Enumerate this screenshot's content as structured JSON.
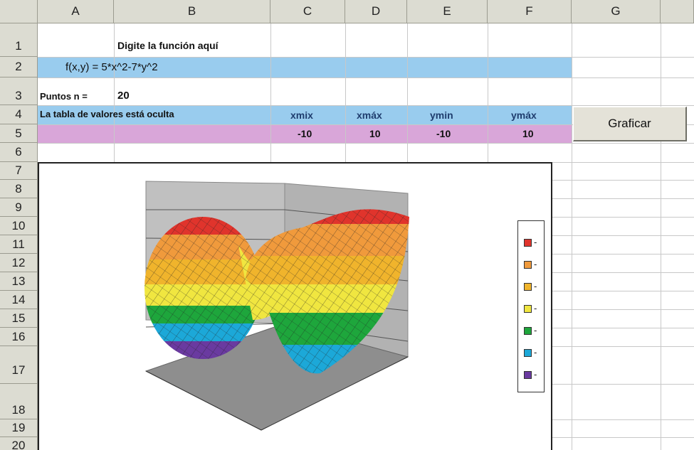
{
  "columns": [
    "A",
    "B",
    "C",
    "D",
    "E",
    "F",
    "G"
  ],
  "rows": [
    "1",
    "2",
    "3",
    "4",
    "5",
    "6",
    "7",
    "8",
    "9",
    "10",
    "11",
    "12",
    "13",
    "14",
    "15",
    "16",
    "17",
    "18",
    "19",
    "20"
  ],
  "sheet": {
    "prompt": "Digite la función aquí",
    "function": "f(x,y) = 5*x^2-7*y^2",
    "points_label": "Puntos  n =",
    "points_value": "20",
    "hidden_note": "La tabla de valores está oculta",
    "headers": [
      "xmix",
      "xmáx",
      "ymin",
      "ymáx"
    ],
    "values": [
      "-10",
      "10",
      "-10",
      "10"
    ]
  },
  "button": {
    "label": "Graficar"
  },
  "chart_data": {
    "type": "surface",
    "function": "5*x^2-7*y^2",
    "n": 20,
    "xlim": [
      -10,
      10
    ],
    "ylim": [
      -10,
      10
    ],
    "legend": [
      "-",
      "-",
      "-",
      "-",
      "-",
      "-",
      "-"
    ],
    "band_colors": [
      "#e0342c",
      "#f09a3c",
      "#f0b42c",
      "#f0e640",
      "#1ea63c",
      "#1ca8d8",
      "#6a3aa0"
    ]
  }
}
